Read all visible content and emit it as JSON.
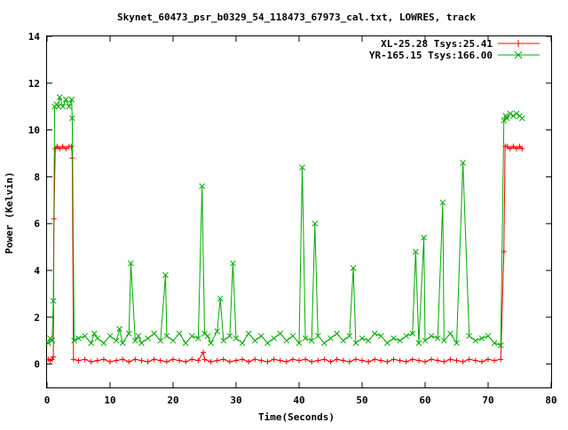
{
  "chart_data": {
    "type": "line",
    "title": "Skynet_60473_psr_b0329_54_118473_67973_cal.txt, LOWRES, track",
    "xlabel": "Time(Seconds)",
    "ylabel": "Power (Kelvin)",
    "xlim": [
      0,
      80
    ],
    "ylim": [
      -1,
      14
    ],
    "xticks": [
      0,
      10,
      20,
      30,
      40,
      50,
      60,
      70,
      80
    ],
    "yticks": [
      0,
      2,
      4,
      6,
      8,
      10,
      12,
      14
    ],
    "legend_position": "top-right",
    "grid": false,
    "series": [
      {
        "name": "XL-25.28 Tsys:25.41",
        "color": "#ff0000",
        "marker": "plus",
        "x": [
          0.2,
          0.5,
          0.8,
          1.0,
          1.1,
          1.3,
          1.6,
          2.0,
          2.5,
          3.0,
          3.5,
          3.9,
          4.0,
          4.2,
          5.0,
          6.0,
          7.0,
          8.0,
          9.0,
          10.0,
          11.0,
          12.0,
          13.0,
          14.0,
          15.0,
          16.0,
          17.0,
          18.0,
          19.0,
          20.0,
          21.0,
          22.0,
          23.0,
          24.0,
          24.8,
          25.0,
          26.0,
          27.0,
          28.0,
          29.0,
          30.0,
          31.0,
          32.0,
          33.0,
          34.0,
          35.0,
          36.0,
          37.0,
          38.0,
          39.0,
          40.0,
          41.0,
          42.0,
          43.0,
          44.0,
          45.0,
          46.0,
          47.0,
          48.0,
          49.0,
          50.0,
          51.0,
          52.0,
          53.0,
          54.0,
          55.0,
          56.0,
          57.0,
          58.0,
          59.0,
          60.0,
          61.0,
          62.0,
          63.0,
          64.0,
          65.0,
          66.0,
          67.0,
          68.0,
          69.0,
          70.0,
          71.0,
          72.0,
          72.5,
          72.7,
          73.0,
          73.5,
          74.0,
          74.5,
          75.0,
          75.4
        ],
        "y": [
          0.2,
          0.15,
          0.2,
          0.3,
          6.2,
          9.2,
          9.3,
          9.2,
          9.3,
          9.2,
          9.3,
          9.3,
          8.8,
          0.2,
          0.15,
          0.2,
          0.1,
          0.15,
          0.2,
          0.1,
          0.15,
          0.2,
          0.1,
          0.2,
          0.15,
          0.1,
          0.2,
          0.15,
          0.1,
          0.2,
          0.15,
          0.1,
          0.2,
          0.15,
          0.5,
          0.2,
          0.1,
          0.15,
          0.2,
          0.1,
          0.15,
          0.2,
          0.1,
          0.2,
          0.15,
          0.1,
          0.2,
          0.15,
          0.1,
          0.2,
          0.15,
          0.2,
          0.1,
          0.15,
          0.2,
          0.1,
          0.2,
          0.15,
          0.1,
          0.2,
          0.15,
          0.1,
          0.2,
          0.15,
          0.1,
          0.2,
          0.15,
          0.1,
          0.2,
          0.15,
          0.1,
          0.2,
          0.15,
          0.1,
          0.2,
          0.15,
          0.1,
          0.2,
          0.15,
          0.1,
          0.2,
          0.15,
          0.2,
          4.8,
          9.3,
          9.3,
          9.2,
          9.3,
          9.2,
          9.3,
          9.2
        ]
      },
      {
        "name": "YR-165.15 Tsys:166.00",
        "color": "#00aa00",
        "marker": "cross",
        "x": [
          0.2,
          0.5,
          0.8,
          1.0,
          1.2,
          1.5,
          1.8,
          2.0,
          2.5,
          3.0,
          3.5,
          3.9,
          4.0,
          4.3,
          5.0,
          6.0,
          7.0,
          7.5,
          8.0,
          9.0,
          10.0,
          11.0,
          11.5,
          12.0,
          13.0,
          13.3,
          14.0,
          14.5,
          15.0,
          16.0,
          17.0,
          18.0,
          18.8,
          19.0,
          20.0,
          21.0,
          22.0,
          23.0,
          24.0,
          24.6,
          25.0,
          25.5,
          26.0,
          27.0,
          27.5,
          28.0,
          29.0,
          29.5,
          30.0,
          31.0,
          32.0,
          33.0,
          34.0,
          35.0,
          36.0,
          37.0,
          38.0,
          39.0,
          40.0,
          40.5,
          41.0,
          42.0,
          42.5,
          43.0,
          44.0,
          45.0,
          46.0,
          47.0,
          48.0,
          48.6,
          49.0,
          50.0,
          51.0,
          52.0,
          53.0,
          54.0,
          55.0,
          56.0,
          57.0,
          58.0,
          58.5,
          59.0,
          59.8,
          60.0,
          61.0,
          62.0,
          62.8,
          63.0,
          64.0,
          65.0,
          66.0,
          67.0,
          68.0,
          69.0,
          70.0,
          71.0,
          72.0,
          72.5,
          72.8,
          73.0,
          73.5,
          74.0,
          74.5,
          75.0,
          75.4
        ],
        "y": [
          0.9,
          1.1,
          1.0,
          2.7,
          11.0,
          11.1,
          11.0,
          11.4,
          11.0,
          11.3,
          11.0,
          11.3,
          10.5,
          1.0,
          1.1,
          1.2,
          0.9,
          1.3,
          1.1,
          0.9,
          1.2,
          1.0,
          1.5,
          0.9,
          1.3,
          4.3,
          1.0,
          1.2,
          0.9,
          1.1,
          1.3,
          1.0,
          3.8,
          1.2,
          1.0,
          1.3,
          0.9,
          1.2,
          1.1,
          7.6,
          1.3,
          1.2,
          0.9,
          1.4,
          2.8,
          1.0,
          1.2,
          4.3,
          1.1,
          0.9,
          1.3,
          1.0,
          1.2,
          0.9,
          1.1,
          1.3,
          1.0,
          1.2,
          0.9,
          8.4,
          1.1,
          1.0,
          6.0,
          1.2,
          0.9,
          1.1,
          1.3,
          1.0,
          1.2,
          4.1,
          0.9,
          1.1,
          1.0,
          1.3,
          1.2,
          0.9,
          1.1,
          1.0,
          1.2,
          1.3,
          4.8,
          0.9,
          5.4,
          1.0,
          1.2,
          1.1,
          6.9,
          1.0,
          1.3,
          0.9,
          8.6,
          1.2,
          1.0,
          1.1,
          1.2,
          0.9,
          0.8,
          10.4,
          10.6,
          10.5,
          10.7,
          10.6,
          10.7,
          10.6,
          10.5
        ]
      }
    ]
  }
}
